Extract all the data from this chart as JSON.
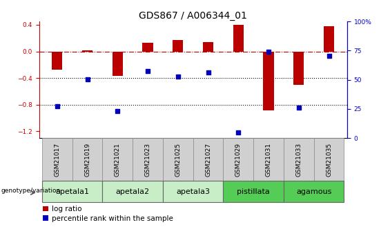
{
  "title": "GDS867 / A006344_01",
  "samples": [
    "GSM21017",
    "GSM21019",
    "GSM21021",
    "GSM21023",
    "GSM21025",
    "GSM21027",
    "GSM21029",
    "GSM21031",
    "GSM21033",
    "GSM21035"
  ],
  "log_ratio": [
    -0.27,
    0.02,
    -0.37,
    0.13,
    0.17,
    0.14,
    0.4,
    -0.88,
    -0.5,
    0.38
  ],
  "percentile_left": [
    -0.82,
    -0.42,
    -0.9,
    -0.3,
    -0.38,
    -0.32,
    -1.22,
    0.0,
    -0.84,
    -0.07
  ],
  "groups": [
    {
      "label": "apetala1",
      "samples": [
        0,
        1
      ],
      "color": "#c8eec8"
    },
    {
      "label": "apetala2",
      "samples": [
        2,
        3
      ],
      "color": "#c8eec8"
    },
    {
      "label": "apetala3",
      "samples": [
        4,
        5
      ],
      "color": "#c8eec8"
    },
    {
      "label": "pistillata",
      "samples": [
        6,
        7
      ],
      "color": "#55cc55"
    },
    {
      "label": "agamous",
      "samples": [
        8,
        9
      ],
      "color": "#55cc55"
    }
  ],
  "bar_color": "#bb0000",
  "dot_color": "#0000bb",
  "hline_color": "#bb0000",
  "dotline_color": "black",
  "ylim_left": [
    -1.3,
    0.45
  ],
  "yticks_left": [
    -1.2,
    -0.8,
    -0.4,
    0.0,
    0.4
  ],
  "yticks_right": [
    0,
    25,
    50,
    75,
    100
  ],
  "ylabel_left_color": "#cc0000",
  "ylabel_right_color": "#0000cc",
  "bar_width": 0.35,
  "legend_red": "log ratio",
  "legend_blue": "percentile rank within the sample",
  "genotype_label": "genotype/variation",
  "title_fontsize": 10,
  "tick_fontsize": 6.5,
  "group_label_fontsize": 8,
  "legend_fontsize": 7.5,
  "sample_box_color": "#d0d0d0",
  "sample_box_edge": "#888888"
}
